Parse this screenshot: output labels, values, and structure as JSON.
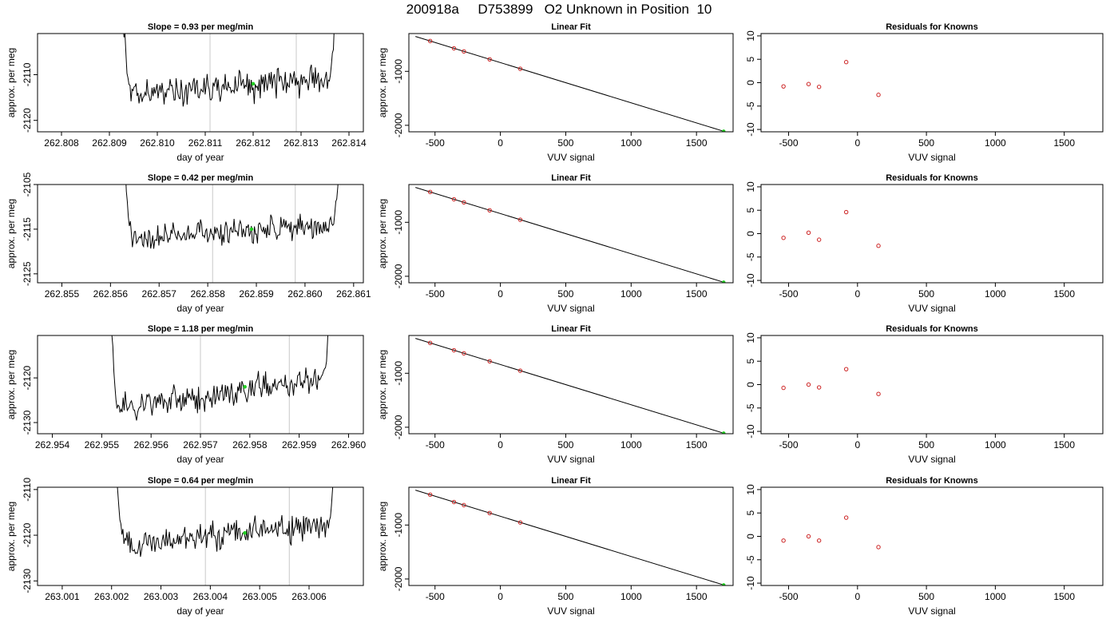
{
  "page_title": "200918a     D753899   O2 Unknown in Position  10",
  "colors": {
    "trace": "#000000",
    "reference_lines": "#c8c8c8",
    "point_outline": "#cc2222",
    "highlight": "#22cc22",
    "fit_line": "#000000"
  },
  "chart_data": [
    {
      "type": "line",
      "row": 1,
      "panel": "trace",
      "title": "Slope =  0.93  per meg/min",
      "xlabel": "day of year",
      "ylabel": "approx. per meg",
      "xlim": [
        262.8075,
        262.8143
      ],
      "ylim": [
        -2122.5,
        -2101.0
      ],
      "xticks": [
        "262.808",
        "262.809",
        "262.810",
        "262.811",
        "262.812",
        "262.813",
        "262.814"
      ],
      "yticks": [
        "-2110",
        "-2120"
      ],
      "trace_x_range": [
        262.8092,
        262.8138
      ],
      "trace_baseline": [
        -2114.5,
        -2110.5
      ],
      "trace_noise": 2.2,
      "reference_lines_x": [
        262.8111,
        262.8129
      ],
      "highlight_point": [
        262.812,
        -2112.0
      ]
    },
    {
      "type": "scatter",
      "row": 1,
      "panel": "fit",
      "title": "Linear Fit",
      "xlabel": "VUV signal",
      "ylabel": "approx. per meg",
      "xlim": [
        -700,
        1780
      ],
      "ylim": [
        -2120,
        -300
      ],
      "xticks": [
        "-500",
        "0",
        "500",
        "1000",
        "1500"
      ],
      "yticks": [
        "-1000",
        "-2000"
      ],
      "fit_line": [
        [
          -650,
          -354
        ],
        [
          1710,
          -2112
        ]
      ],
      "points": [
        [
          -537,
          -438
        ],
        [
          -355,
          -574
        ],
        [
          -279,
          -631
        ],
        [
          -82,
          -778
        ],
        [
          152,
          -953
        ]
      ],
      "highlight_point": [
        1708,
        -2112
      ]
    },
    {
      "type": "scatter",
      "row": 1,
      "panel": "residuals",
      "title": "Residuals for Knowns",
      "xlabel": "VUV signal",
      "ylabel": "",
      "xlim": [
        -700,
        1780
      ],
      "ylim": [
        -10.5,
        10.5
      ],
      "xticks": [
        "-500",
        "0",
        "500",
        "1000",
        "1500"
      ],
      "yticks": [
        "-10",
        "-5",
        "0",
        "5",
        "10"
      ],
      "points": [
        [
          -537,
          -0.8
        ],
        [
          -355,
          -0.3
        ],
        [
          -279,
          -0.9
        ],
        [
          -82,
          4.4
        ],
        [
          152,
          -2.6
        ]
      ]
    },
    {
      "type": "line",
      "row": 2,
      "panel": "trace",
      "title": "Slope =  0.42  per meg/min",
      "xlabel": "day of year",
      "ylabel": "approx. per meg",
      "xlim": [
        262.8545,
        262.8612
      ],
      "ylim": [
        -2127.0,
        -2105.0
      ],
      "xticks": [
        "262.855",
        "262.856",
        "262.857",
        "262.858",
        "262.859",
        "262.860",
        "262.861"
      ],
      "yticks": [
        "-2105",
        "-2115",
        "-2125"
      ],
      "trace_x_range": [
        262.8562,
        262.8608
      ],
      "trace_baseline": [
        -2117.5,
        -2114.0
      ],
      "trace_noise": 2.0,
      "reference_lines_x": [
        262.8581,
        262.8598
      ],
      "highlight_point": [
        262.8589,
        -2115.0
      ]
    },
    {
      "type": "scatter",
      "row": 2,
      "panel": "fit",
      "title": "Linear Fit",
      "xlabel": "VUV signal",
      "ylabel": "approx. per meg",
      "xlim": [
        -700,
        1780
      ],
      "ylim": [
        -2120,
        -300
      ],
      "xticks": [
        "-500",
        "0",
        "500",
        "1000",
        "1500"
      ],
      "yticks": [
        "-1000",
        "-2000"
      ],
      "fit_line": [
        [
          -650,
          -354
        ],
        [
          1710,
          -2112
        ]
      ],
      "points": [
        [
          -537,
          -438
        ],
        [
          -355,
          -574
        ],
        [
          -279,
          -631
        ],
        [
          -82,
          -778
        ],
        [
          152,
          -953
        ]
      ],
      "highlight_point": [
        1708,
        -2112
      ]
    },
    {
      "type": "scatter",
      "row": 2,
      "panel": "residuals",
      "title": "Residuals for Knowns",
      "xlabel": "VUV signal",
      "ylabel": "",
      "xlim": [
        -700,
        1780
      ],
      "ylim": [
        -10.5,
        10.5
      ],
      "xticks": [
        "-500",
        "0",
        "500",
        "1000",
        "1500"
      ],
      "yticks": [
        "-10",
        "-5",
        "0",
        "5",
        "10"
      ],
      "points": [
        [
          -537,
          -0.9
        ],
        [
          -355,
          0.2
        ],
        [
          -279,
          -1.3
        ],
        [
          -82,
          4.6
        ],
        [
          152,
          -2.6
        ]
      ]
    },
    {
      "type": "line",
      "row": 3,
      "panel": "trace",
      "title": "Slope =  1.18  per meg/min",
      "xlabel": "day of year",
      "ylabel": "approx. per meg",
      "xlim": [
        262.9537,
        262.9603
      ],
      "ylim": [
        -2132.5,
        -2110.5
      ],
      "xticks": [
        "262.954",
        "262.955",
        "262.956",
        "262.957",
        "262.958",
        "262.959",
        "262.960"
      ],
      "yticks": [
        "-2120",
        "-2130"
      ],
      "trace_x_range": [
        262.9551,
        262.9597
      ],
      "trace_baseline": [
        -2127.5,
        -2119.5
      ],
      "trace_noise": 2.2,
      "reference_lines_x": [
        262.957,
        262.9588
      ],
      "highlight_point": [
        262.9579,
        -2122.0
      ]
    },
    {
      "type": "scatter",
      "row": 3,
      "panel": "fit",
      "title": "Linear Fit",
      "xlabel": "VUV signal",
      "ylabel": "approx. per meg",
      "xlim": [
        -700,
        1780
      ],
      "ylim": [
        -2120,
        -300
      ],
      "xticks": [
        "-500",
        "0",
        "500",
        "1000",
        "1500"
      ],
      "yticks": [
        "-1000",
        "-2000"
      ],
      "fit_line": [
        [
          -650,
          -354
        ],
        [
          1710,
          -2112
        ]
      ],
      "points": [
        [
          -537,
          -438
        ],
        [
          -355,
          -574
        ],
        [
          -279,
          -631
        ],
        [
          -82,
          -778
        ],
        [
          152,
          -953
        ]
      ],
      "highlight_point": [
        1708,
        -2112
      ]
    },
    {
      "type": "scatter",
      "row": 3,
      "panel": "residuals",
      "title": "Residuals for Knowns",
      "xlabel": "VUV signal",
      "ylabel": "",
      "xlim": [
        -700,
        1780
      ],
      "ylim": [
        -10.5,
        10.5
      ],
      "xticks": [
        "-500",
        "0",
        "500",
        "1000",
        "1500"
      ],
      "yticks": [
        "-10",
        "-5",
        "0",
        "5",
        "10"
      ],
      "points": [
        [
          -537,
          -0.7
        ],
        [
          -355,
          0.0
        ],
        [
          -279,
          -0.6
        ],
        [
          -82,
          3.3
        ],
        [
          152,
          -2.0
        ]
      ]
    },
    {
      "type": "line",
      "row": 4,
      "panel": "trace",
      "title": "Slope =  0.64  per meg/min",
      "xlabel": "day of year",
      "ylabel": "approx. per meg",
      "xlim": [
        263.0005,
        263.0071
      ],
      "ylim": [
        -2131.0,
        -2109.5
      ],
      "xticks": [
        "263.001",
        "263.002",
        "263.003",
        "263.004",
        "263.005",
        "263.006"
      ],
      "yticks": [
        "-2110",
        "-2120",
        "-2130"
      ],
      "trace_x_range": [
        263.002,
        263.0066
      ],
      "trace_baseline": [
        -2122.5,
        -2117.5
      ],
      "trace_noise": 2.2,
      "reference_lines_x": [
        263.0039,
        263.0056
      ],
      "highlight_point": [
        263.0047,
        -2119.5
      ]
    },
    {
      "type": "scatter",
      "row": 4,
      "panel": "fit",
      "title": "Linear Fit",
      "xlabel": "VUV signal",
      "ylabel": "approx. per meg",
      "xlim": [
        -700,
        1780
      ],
      "ylim": [
        -2120,
        -300
      ],
      "xticks": [
        "-500",
        "0",
        "500",
        "1000",
        "1500"
      ],
      "yticks": [
        "-1000",
        "-2000"
      ],
      "fit_line": [
        [
          -650,
          -354
        ],
        [
          1710,
          -2112
        ]
      ],
      "points": [
        [
          -537,
          -438
        ],
        [
          -355,
          -574
        ],
        [
          -279,
          -631
        ],
        [
          -82,
          -778
        ],
        [
          152,
          -953
        ]
      ],
      "highlight_point": [
        1708,
        -2112
      ]
    },
    {
      "type": "scatter",
      "row": 4,
      "panel": "residuals",
      "title": "Residuals for Knowns",
      "xlabel": "VUV signal",
      "ylabel": "",
      "xlim": [
        -700,
        1780
      ],
      "ylim": [
        -10.5,
        10.5
      ],
      "xticks": [
        "-500",
        "0",
        "500",
        "1000",
        "1500"
      ],
      "yticks": [
        "-10",
        "-5",
        "0",
        "5",
        "10"
      ],
      "points": [
        [
          -537,
          -0.9
        ],
        [
          -355,
          0.0
        ],
        [
          -279,
          -0.9
        ],
        [
          -82,
          4.0
        ],
        [
          152,
          -2.3
        ]
      ]
    }
  ]
}
